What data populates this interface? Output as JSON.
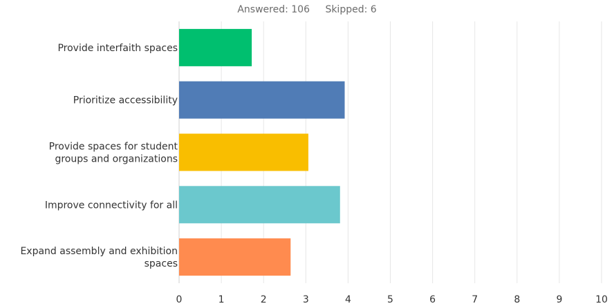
{
  "summary": {
    "answered": "Answered: 106",
    "skipped": "Skipped: 6"
  },
  "chart_data": {
    "type": "bar",
    "orientation": "horizontal",
    "categories": [
      [
        "Provide interfaith spaces"
      ],
      [
        "Prioritize accessibility"
      ],
      [
        "Provide spaces for student",
        "groups and organizations"
      ],
      [
        "Improve connectivity for all"
      ],
      [
        "Expand assembly and exhibition",
        "spaces"
      ]
    ],
    "values": [
      1.72,
      3.92,
      3.06,
      3.81,
      2.64
    ],
    "colors": [
      "#00bf6f",
      "#507cb6",
      "#f9be00",
      "#6bc8cd",
      "#ff8b4f"
    ],
    "xlim": [
      0,
      10
    ],
    "xticks": [
      "0",
      "1",
      "2",
      "3",
      "4",
      "5",
      "6",
      "7",
      "8",
      "9",
      "10"
    ],
    "grid": true
  }
}
